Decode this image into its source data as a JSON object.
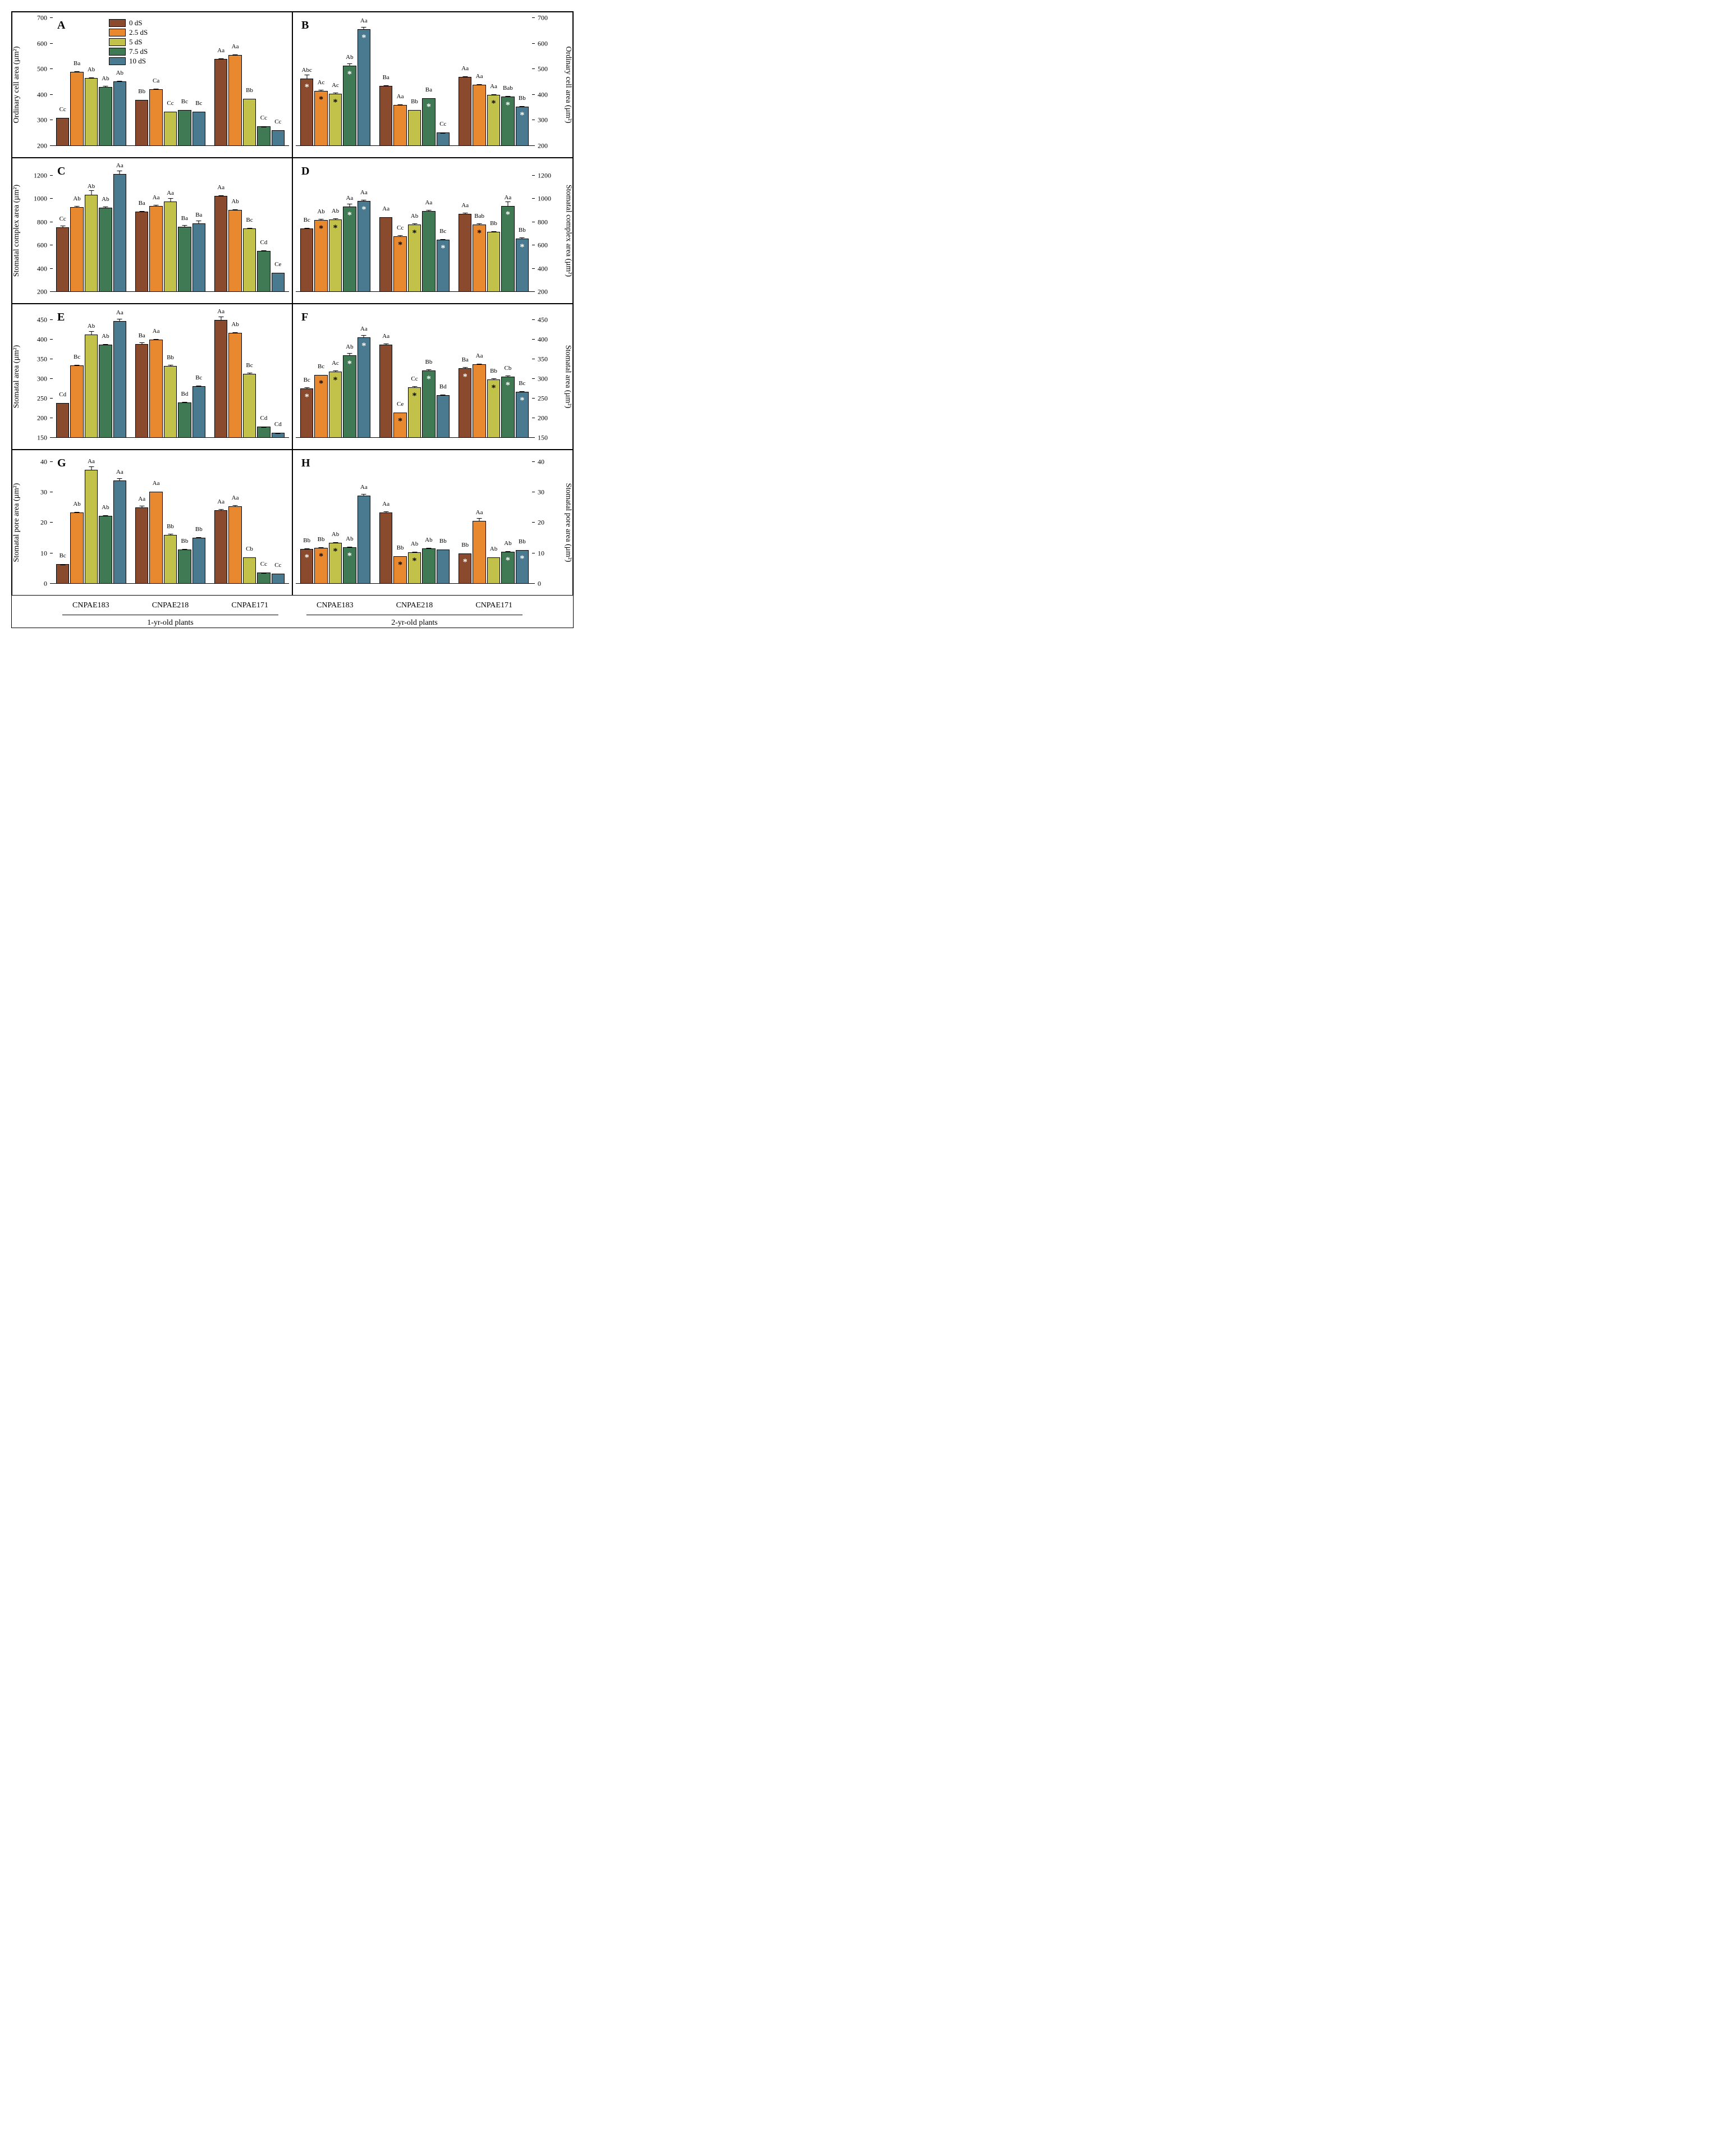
{
  "colors": {
    "series": [
      "#8a4a2e",
      "#e8892f",
      "#c2c24a",
      "#3f7a55",
      "#4a7a8f"
    ],
    "star_light": "#ffffff",
    "star_dark": "#000000",
    "background": "#ffffff"
  },
  "fonts": {
    "panel_label_size": 20,
    "axis_label_size": 14,
    "tick_size": 12,
    "bar_label_size": 11,
    "family": "Georgia, serif"
  },
  "legend": {
    "items": [
      "0 dS",
      "2.5 dS",
      "5 dS",
      "7.5 dS",
      "10 dS"
    ],
    "panel": "A"
  },
  "x_axis": {
    "groups": [
      "CNPAE183",
      "CNPAE218",
      "CNPAE171"
    ],
    "age_labels": [
      "1-yr-old plants",
      "2-yr-old plants"
    ]
  },
  "layout": {
    "rows": 4,
    "cols": 2,
    "bar_width": 0.85,
    "group_gap": 0.15
  },
  "panels": [
    {
      "id": "A",
      "side": "left",
      "ylabel": "Ordinary cell area  (µm²)",
      "ylim": [
        200,
        700
      ],
      "ytick_step": 100,
      "groups": [
        [
          {
            "v": 305,
            "e": 8,
            "l": "Cc"
          },
          {
            "v": 485,
            "e": 8,
            "l": "Ba"
          },
          {
            "v": 460,
            "e": 10,
            "l": "Ab"
          },
          {
            "v": 425,
            "e": 15,
            "l": "Ab"
          },
          {
            "v": 448,
            "e": 10,
            "l": "Ab"
          }
        ],
        [
          {
            "v": 375,
            "e": 8,
            "l": "Bb"
          },
          {
            "v": 418,
            "e": 10,
            "l": "Ca"
          },
          {
            "v": 330,
            "e": 8,
            "l": "Cc"
          },
          {
            "v": 335,
            "e": 8,
            "l": "Bc"
          },
          {
            "v": 330,
            "e": 8,
            "l": "Bc"
          }
        ],
        [
          {
            "v": 535,
            "e": 8,
            "l": "Aa"
          },
          {
            "v": 550,
            "e": 8,
            "l": "Aa"
          },
          {
            "v": 380,
            "e": 8,
            "l": "Bb"
          },
          {
            "v": 272,
            "e": 8,
            "l": "Cc"
          },
          {
            "v": 258,
            "e": 10,
            "l": "Cc"
          }
        ]
      ]
    },
    {
      "id": "B",
      "side": "right",
      "ylabel": "Ordinary cell area  (µm²)",
      "ylim": [
        200,
        700
      ],
      "ytick_step": 100,
      "groups": [
        [
          {
            "v": 458,
            "e": 35,
            "l": "Abc",
            "s": "w"
          },
          {
            "v": 410,
            "e": 15,
            "l": "Ac",
            "s": "b"
          },
          {
            "v": 400,
            "e": 15,
            "l": "Ac",
            "s": "b"
          },
          {
            "v": 510,
            "e": 15,
            "l": "Ab",
            "s": "w"
          },
          {
            "v": 652,
            "e": 12,
            "l": "Aa",
            "s": "w"
          }
        ],
        [
          {
            "v": 430,
            "e": 8,
            "l": "Ba"
          },
          {
            "v": 355,
            "e": 20,
            "l": "Aa"
          },
          {
            "v": 335,
            "e": 8,
            "l": "Bb"
          },
          {
            "v": 382,
            "e": 8,
            "l": "Ba",
            "s": "w"
          },
          {
            "v": 248,
            "e": 10,
            "l": "Cc"
          }
        ],
        [
          {
            "v": 465,
            "e": 8,
            "l": "Aa"
          },
          {
            "v": 435,
            "e": 10,
            "l": "Aa"
          },
          {
            "v": 395,
            "e": 12,
            "l": "Aa",
            "s": "b"
          },
          {
            "v": 388,
            "e": 12,
            "l": "Bab",
            "s": "w"
          },
          {
            "v": 350,
            "e": 10,
            "l": "Bb",
            "s": "w"
          }
        ]
      ]
    },
    {
      "id": "C",
      "side": "left",
      "ylabel": "Stomatal complex area  (µm²)",
      "ylim": [
        200,
        1300
      ],
      "ytick_step": 200,
      "groups": [
        [
          {
            "v": 745,
            "e": 35,
            "l": "Cc"
          },
          {
            "v": 920,
            "e": 20,
            "l": "Ab"
          },
          {
            "v": 1025,
            "e": 55,
            "l": "Ab"
          },
          {
            "v": 915,
            "e": 20,
            "l": "Ab"
          },
          {
            "v": 1205,
            "e": 35,
            "l": "Aa"
          }
        ],
        [
          {
            "v": 880,
            "e": 20,
            "l": "Ba"
          },
          {
            "v": 930,
            "e": 20,
            "l": "Aa"
          },
          {
            "v": 965,
            "e": 55,
            "l": "Aa"
          },
          {
            "v": 750,
            "e": 40,
            "l": "Ba"
          },
          {
            "v": 780,
            "e": 55,
            "l": "Ba"
          }
        ],
        [
          {
            "v": 1015,
            "e": 15,
            "l": "Aa"
          },
          {
            "v": 895,
            "e": 15,
            "l": "Ab"
          },
          {
            "v": 735,
            "e": 25,
            "l": "Bc"
          },
          {
            "v": 545,
            "e": 20,
            "l": "Cd"
          },
          {
            "v": 355,
            "e": 20,
            "l": "Ce"
          }
        ]
      ]
    },
    {
      "id": "D",
      "side": "right",
      "ylabel": "Stomatal complex area  (µm²)",
      "ylim": [
        200,
        1300
      ],
      "ytick_step": 200,
      "groups": [
        [
          {
            "v": 735,
            "e": 20,
            "l": "Bc"
          },
          {
            "v": 810,
            "e": 25,
            "l": "Ab",
            "s": "b"
          },
          {
            "v": 815,
            "e": 25,
            "l": "Ab",
            "s": "b"
          },
          {
            "v": 925,
            "e": 40,
            "l": "Aa",
            "s": "w"
          },
          {
            "v": 970,
            "e": 25,
            "l": "Aa",
            "s": "w"
          }
        ],
        [
          {
            "v": 830,
            "e": 15,
            "l": "Aa"
          },
          {
            "v": 670,
            "e": 25,
            "l": "Cc",
            "s": "b"
          },
          {
            "v": 770,
            "e": 25,
            "l": "Ab",
            "s": "b"
          },
          {
            "v": 885,
            "e": 20,
            "l": "Aa"
          },
          {
            "v": 640,
            "e": 25,
            "l": "Bc",
            "s": "w"
          }
        ],
        [
          {
            "v": 860,
            "e": 25,
            "l": "Aa"
          },
          {
            "v": 770,
            "e": 25,
            "l": "Bab",
            "s": "b"
          },
          {
            "v": 705,
            "e": 20,
            "l": "Bb"
          },
          {
            "v": 930,
            "e": 60,
            "l": "Aa",
            "s": "w"
          },
          {
            "v": 650,
            "e": 30,
            "l": "Bb",
            "s": "w"
          }
        ]
      ]
    },
    {
      "id": "E",
      "side": "left",
      "ylabel": "Stomatal area  (µm²)",
      "ylim": [
        150,
        475
      ],
      "ytick_step": 50,
      "groups": [
        [
          {
            "v": 235,
            "e": 10,
            "l": "Cd"
          },
          {
            "v": 331,
            "e": 6,
            "l": "Bc"
          },
          {
            "v": 410,
            "e": 12,
            "l": "Ab"
          },
          {
            "v": 384,
            "e": 4,
            "l": "Ab"
          },
          {
            "v": 444,
            "e": 8,
            "l": "Aa"
          }
        ],
        [
          {
            "v": 385,
            "e": 8,
            "l": "Ba"
          },
          {
            "v": 397,
            "e": 4,
            "l": "Aa"
          },
          {
            "v": 330,
            "e": 6,
            "l": "Bb"
          },
          {
            "v": 237,
            "e": 8,
            "l": "Bd"
          },
          {
            "v": 278,
            "e": 8,
            "l": "Bc"
          }
        ],
        [
          {
            "v": 447,
            "e": 10,
            "l": "Aa"
          },
          {
            "v": 414,
            "e": 4,
            "l": "Ab"
          },
          {
            "v": 310,
            "e": 8,
            "l": "Bc"
          },
          {
            "v": 175,
            "e": 6,
            "l": "Cd"
          },
          {
            "v": 160,
            "e": 4,
            "l": "Cd"
          }
        ]
      ]
    },
    {
      "id": "F",
      "side": "right",
      "ylabel": "Stomatal area  (µm²)",
      "ylim": [
        150,
        475
      ],
      "ytick_step": 50,
      "groups": [
        [
          {
            "v": 273,
            "e": 10,
            "l": "Bc",
            "s": "w"
          },
          {
            "v": 307,
            "e": 4,
            "l": "Bc",
            "s": "b"
          },
          {
            "v": 315,
            "e": 8,
            "l": "Ac",
            "s": "b"
          },
          {
            "v": 357,
            "e": 10,
            "l": "Ab",
            "s": "w"
          },
          {
            "v": 402,
            "e": 10,
            "l": "Aa",
            "s": "w"
          }
        ],
        [
          {
            "v": 384,
            "e": 6,
            "l": "Aa"
          },
          {
            "v": 212,
            "e": 4,
            "l": "Ce",
            "s": "b"
          },
          {
            "v": 276,
            "e": 10,
            "l": "Cc",
            "s": "b"
          },
          {
            "v": 318,
            "e": 8,
            "l": "Bb",
            "s": "w"
          },
          {
            "v": 256,
            "e": 6,
            "l": "Bd"
          }
        ],
        [
          {
            "v": 324,
            "e": 8,
            "l": "Ba",
            "s": "w"
          },
          {
            "v": 334,
            "e": 6,
            "l": "Aa"
          },
          {
            "v": 296,
            "e": 8,
            "l": "Bb",
            "s": "b"
          },
          {
            "v": 302,
            "e": 10,
            "l": "Cb",
            "s": "w"
          },
          {
            "v": 264,
            "e": 8,
            "l": "Bc",
            "s": "w"
          }
        ]
      ]
    },
    {
      "id": "G",
      "side": "left",
      "ylabel": "Stomatal pore area  (µm²)",
      "ylim": [
        0,
        42
      ],
      "ytick_step": 10,
      "groups": [
        [
          {
            "v": 6.0,
            "e": 1.2,
            "l": "Bc"
          },
          {
            "v": 23.0,
            "e": 0.6,
            "l": "Ab"
          },
          {
            "v": 37.0,
            "e": 1.5,
            "l": "Aa"
          },
          {
            "v": 22.0,
            "e": 0.6,
            "l": "Ab"
          },
          {
            "v": 33.5,
            "e": 1.2,
            "l": "Aa"
          }
        ],
        [
          {
            "v": 24.7,
            "e": 1.2,
            "l": "Aa"
          },
          {
            "v": 29.8,
            "e": 0.4,
            "l": "Aa"
          },
          {
            "v": 15.7,
            "e": 1.2,
            "l": "Bb"
          },
          {
            "v": 10.8,
            "e": 1.5,
            "l": "Bb"
          },
          {
            "v": 14.7,
            "e": 1.0,
            "l": "Bb"
          }
        ],
        [
          {
            "v": 23.7,
            "e": 1.2,
            "l": "Aa"
          },
          {
            "v": 25.0,
            "e": 1.0,
            "l": "Aa"
          },
          {
            "v": 8.3,
            "e": 1.0,
            "l": "Cb"
          },
          {
            "v": 3.3,
            "e": 0.8,
            "l": "Cc"
          },
          {
            "v": 3.0,
            "e": 0.8,
            "l": "Cc"
          }
        ]
      ]
    },
    {
      "id": "H",
      "side": "right",
      "ylabel": "Stomatal pore area  (µm²)",
      "ylim": [
        0,
        42
      ],
      "ytick_step": 10,
      "groups": [
        [
          {
            "v": 11.0,
            "e": 1.8,
            "l": "Bb",
            "s": "w"
          },
          {
            "v": 11.5,
            "e": 1.2,
            "l": "Bb",
            "s": "b"
          },
          {
            "v": 13.0,
            "e": 1.5,
            "l": "Ab",
            "s": "b"
          },
          {
            "v": 11.7,
            "e": 1.0,
            "l": "Ab",
            "s": "w"
          },
          {
            "v": 28.6,
            "e": 1.0,
            "l": "Aa"
          }
        ],
        [
          {
            "v": 23.1,
            "e": 1.0,
            "l": "Aa"
          },
          {
            "v": 8.6,
            "e": 1.2,
            "l": "Bb",
            "s": "b"
          },
          {
            "v": 10.0,
            "e": 1.5,
            "l": "Ab",
            "s": "b"
          },
          {
            "v": 11.3,
            "e": 1.2,
            "l": "Ab"
          },
          {
            "v": 10.8,
            "e": 0.8,
            "l": "Bb"
          }
        ],
        [
          {
            "v": 9.5,
            "e": 1.2,
            "l": "Bb",
            "s": "w"
          },
          {
            "v": 20.2,
            "e": 2.5,
            "l": "Aa"
          },
          {
            "v": 8.3,
            "e": 1.0,
            "l": "Ab"
          },
          {
            "v": 10.2,
            "e": 1.0,
            "l": "Ab",
            "s": "w"
          },
          {
            "v": 10.6,
            "e": 1.0,
            "l": "Bb",
            "s": "w"
          }
        ]
      ]
    }
  ]
}
